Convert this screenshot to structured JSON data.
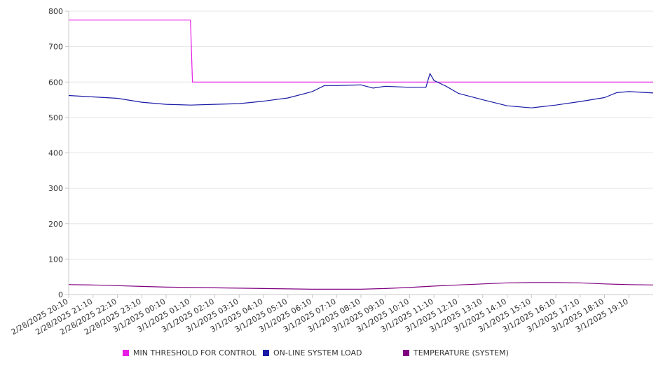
{
  "chart_data": {
    "type": "line",
    "title": "",
    "xlabel": "",
    "ylabel": "",
    "ylim": [
      0,
      800
    ],
    "yticks": [
      0,
      100,
      200,
      300,
      400,
      500,
      600,
      700,
      800
    ],
    "grid": "horizontal",
    "legend_position": "bottom",
    "x_tick_labels": [
      "2/28/2025 20:10",
      "2/28/2025 21:10",
      "2/28/2025 22:10",
      "2/28/2025 23:10",
      "3/1/2025 00:10",
      "3/1/2025 01:10",
      "3/1/2025 02:10",
      "3/1/2025 03:10",
      "3/1/2025 04:10",
      "3/1/2025 05:10",
      "3/1/2025 06:10",
      "3/1/2025 07:10",
      "3/1/2025 08:10",
      "3/1/2025 09:10",
      "3/1/2025 10:10",
      "3/1/2025 11:10",
      "3/1/2025 12:10",
      "3/1/2025 13:10",
      "3/1/2025 14:10",
      "3/1/2025 15:10",
      "3/1/2025 16:10",
      "3/1/2025 17:10",
      "3/1/2025 18:10",
      "3/1/2025 19:10"
    ],
    "x_range": [
      "2/28/2025 20:10",
      "3/1/2025 20:10"
    ],
    "series": [
      {
        "name": "MIN THRESHOLD FOR CONTROL",
        "color": "#e61ee6",
        "points": [
          [
            "2/28/2025 20:10",
            775
          ],
          [
            "3/1/2025 01:10",
            775
          ],
          [
            "3/1/2025 01:15",
            600
          ],
          [
            "3/1/2025 20:10",
            600
          ]
        ]
      },
      {
        "name": "ON-LINE SYSTEM LOAD",
        "color": "#1a1aa6",
        "points": [
          [
            "2/28/2025 20:10",
            562
          ],
          [
            "2/28/2025 21:10",
            558
          ],
          [
            "2/28/2025 22:10",
            554
          ],
          [
            "2/28/2025 23:10",
            543
          ],
          [
            "3/1/2025 00:10",
            537
          ],
          [
            "3/1/2025 01:10",
            535
          ],
          [
            "3/1/2025 02:10",
            537
          ],
          [
            "3/1/2025 03:10",
            539
          ],
          [
            "3/1/2025 04:10",
            546
          ],
          [
            "3/1/2025 05:10",
            555
          ],
          [
            "3/1/2025 06:10",
            573
          ],
          [
            "3/1/2025 06:40",
            590
          ],
          [
            "3/1/2025 07:10",
            590
          ],
          [
            "3/1/2025 08:10",
            592
          ],
          [
            "3/1/2025 08:40",
            583
          ],
          [
            "3/1/2025 09:10",
            588
          ],
          [
            "3/1/2025 10:10",
            585
          ],
          [
            "3/1/2025 10:50",
            585
          ],
          [
            "3/1/2025 11:00",
            624
          ],
          [
            "3/1/2025 11:10",
            604
          ],
          [
            "3/1/2025 11:40",
            588
          ],
          [
            "3/1/2025 12:10",
            568
          ],
          [
            "3/1/2025 13:10",
            550
          ],
          [
            "3/1/2025 14:10",
            533
          ],
          [
            "3/1/2025 15:10",
            527
          ],
          [
            "3/1/2025 16:10",
            535
          ],
          [
            "3/1/2025 17:10",
            545
          ],
          [
            "3/1/2025 18:10",
            556
          ],
          [
            "3/1/2025 18:40",
            570
          ],
          [
            "3/1/2025 19:10",
            573
          ],
          [
            "3/1/2025 20:10",
            569
          ]
        ]
      },
      {
        "name": "TEMPERATURE (SYSTEM)",
        "color": "#800080",
        "points": [
          [
            "2/28/2025 20:10",
            28
          ],
          [
            "2/28/2025 21:10",
            27
          ],
          [
            "2/28/2025 22:10",
            25
          ],
          [
            "2/28/2025 23:10",
            23
          ],
          [
            "3/1/2025 00:10",
            21
          ],
          [
            "3/1/2025 01:10",
            20
          ],
          [
            "3/1/2025 02:10",
            19
          ],
          [
            "3/1/2025 03:10",
            18
          ],
          [
            "3/1/2025 04:10",
            17
          ],
          [
            "3/1/2025 05:10",
            16
          ],
          [
            "3/1/2025 06:10",
            15
          ],
          [
            "3/1/2025 07:10",
            15
          ],
          [
            "3/1/2025 08:10",
            15
          ],
          [
            "3/1/2025 09:10",
            17
          ],
          [
            "3/1/2025 10:10",
            20
          ],
          [
            "3/1/2025 11:10",
            24
          ],
          [
            "3/1/2025 12:10",
            27
          ],
          [
            "3/1/2025 13:10",
            30
          ],
          [
            "3/1/2025 14:10",
            33
          ],
          [
            "3/1/2025 15:10",
            34
          ],
          [
            "3/1/2025 16:10",
            34
          ],
          [
            "3/1/2025 17:10",
            33
          ],
          [
            "3/1/2025 18:10",
            30
          ],
          [
            "3/1/2025 19:10",
            28
          ],
          [
            "3/1/2025 20:10",
            27
          ]
        ]
      }
    ]
  }
}
